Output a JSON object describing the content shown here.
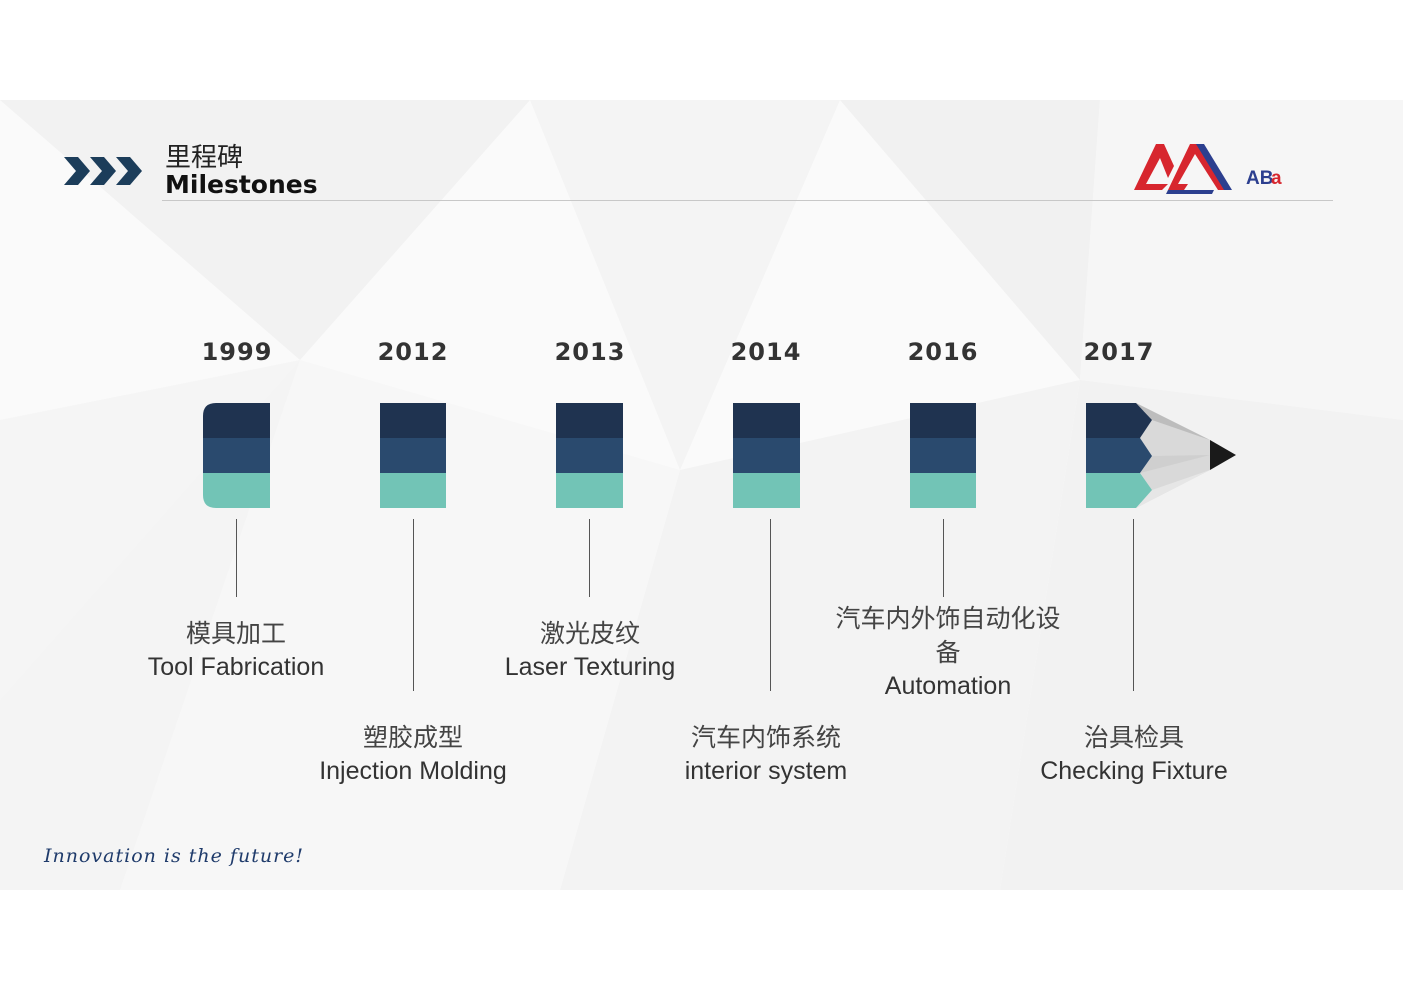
{
  "header": {
    "title_cn": "里程碑",
    "title_en": "Milestones",
    "logo_text": "ABa"
  },
  "colors": {
    "dark": "#1f3350",
    "mid": "#2a4a6e",
    "teal": "#72c4b6",
    "arrow": "#1c3d5a",
    "logo_red": "#d7262e",
    "logo_blue": "#2c3f8f"
  },
  "milestones": [
    {
      "year": "1999",
      "cn": "模具加工",
      "en": "Tool Fabrication"
    },
    {
      "year": "2012",
      "cn": "塑胶成型",
      "en": "Injection Molding"
    },
    {
      "year": "2013",
      "cn": "激光皮纹",
      "en": "Laser Texturing"
    },
    {
      "year": "2014",
      "cn": "汽车内饰系统",
      "en": "interior system"
    },
    {
      "year": "2016",
      "cn": "汽车内外饰自动化设备",
      "en": "Automation"
    },
    {
      "year": "2017",
      "cn": "治具检具",
      "en": "Checking Fixture"
    }
  ],
  "footer": {
    "slogan": "Innovation is the future!"
  }
}
